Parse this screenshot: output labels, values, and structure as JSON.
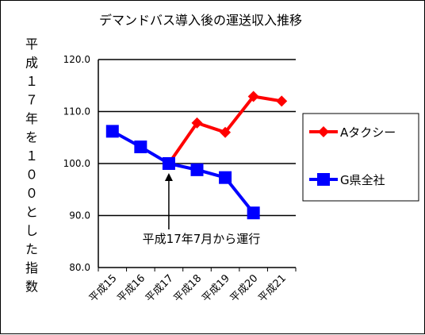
{
  "chart_data": {
    "type": "line",
    "title": "デマンドバス導入後の運送収入推移",
    "ylabel": "平成１７年を１００とした指数",
    "xlabel": "",
    "categories": [
      "平成15",
      "平成16",
      "平成17",
      "平成18",
      "平成19",
      "平成20",
      "平成21"
    ],
    "ylim": [
      80.0,
      120.0
    ],
    "yticks": [
      "80.0",
      "90.0",
      "100.0",
      "110.0",
      "120.0"
    ],
    "grid": true,
    "legend": "right",
    "series": [
      {
        "name": "Aタクシー",
        "color": "#ff0000",
        "marker": "diamond",
        "values": [
          null,
          null,
          100.0,
          107.8,
          106.0,
          112.9,
          112.0
        ]
      },
      {
        "name": "G県全社",
        "color": "#0000ff",
        "marker": "square",
        "values": [
          106.2,
          103.2,
          100.0,
          98.8,
          97.3,
          90.5,
          null
        ]
      }
    ],
    "annotation": "平成17年7月から運行"
  }
}
